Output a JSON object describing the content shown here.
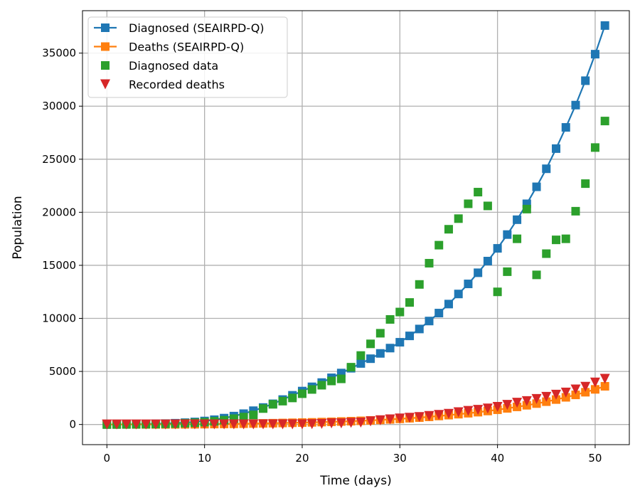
{
  "chart_data": {
    "type": "line",
    "title": "",
    "xlabel": "Time (days)",
    "ylabel": "Population",
    "xlim": [
      -2.5,
      53.5
    ],
    "ylim": [
      -1900,
      39000
    ],
    "xticks": [
      0,
      10,
      20,
      30,
      40,
      50
    ],
    "yticks": [
      0,
      5000,
      10000,
      15000,
      20000,
      25000,
      30000,
      35000
    ],
    "grid": true,
    "legend_position": "top-left",
    "x": [
      0,
      1,
      2,
      3,
      4,
      5,
      6,
      7,
      8,
      9,
      10,
      11,
      12,
      13,
      14,
      15,
      16,
      17,
      18,
      19,
      20,
      21,
      22,
      23,
      24,
      25,
      26,
      27,
      28,
      29,
      30,
      31,
      32,
      33,
      34,
      35,
      36,
      37,
      38,
      39,
      40,
      41,
      42,
      43,
      44,
      45,
      46,
      47,
      48,
      49,
      50,
      51
    ],
    "series": [
      {
        "name": "Diagnosed (SEAIRPD-Q)",
        "style": "line-square",
        "color": "#1f77b4",
        "values": [
          0,
          5,
          15,
          25,
          40,
          60,
          85,
          120,
          170,
          240,
          330,
          450,
          600,
          790,
          1020,
          1300,
          1600,
          1950,
          2350,
          2750,
          3150,
          3550,
          3950,
          4400,
          4850,
          5300,
          5750,
          6200,
          6700,
          7200,
          7750,
          8350,
          9000,
          9750,
          10500,
          11350,
          12300,
          13250,
          14300,
          15400,
          16600,
          17900,
          19300,
          20800,
          22400,
          24100,
          26000,
          28000,
          30100,
          32400,
          34900,
          37600
        ]
      },
      {
        "name": "Deaths (SEAIRPD-Q)",
        "style": "line-square",
        "color": "#ff7f0e",
        "values": [
          0,
          0,
          1,
          2,
          3,
          5,
          8,
          12,
          17,
          23,
          30,
          40,
          50,
          60,
          75,
          90,
          105,
          120,
          140,
          160,
          180,
          200,
          225,
          250,
          280,
          310,
          345,
          385,
          430,
          480,
          530,
          590,
          650,
          720,
          800,
          880,
          970,
          1060,
          1160,
          1270,
          1390,
          1520,
          1660,
          1810,
          1970,
          2150,
          2350,
          2560,
          2790,
          3040,
          3310,
          3600
        ]
      },
      {
        "name": "Diagnosed data",
        "style": "square",
        "color": "#2ca02c",
        "values": [
          0,
          5,
          10,
          20,
          30,
          40,
          60,
          80,
          120,
          160,
          220,
          300,
          400,
          550,
          700,
          900,
          1500,
          1900,
          2200,
          2500,
          2900,
          3300,
          3700,
          4100,
          4300,
          5400,
          6500,
          7600,
          8600,
          9900,
          10600,
          11500,
          13200,
          15200,
          16900,
          18400,
          19400,
          20800,
          21900,
          20600,
          12500,
          14400,
          17500,
          20300,
          14100,
          16100,
          17400,
          17500,
          20100,
          22700,
          26100,
          28600
        ]
      },
      {
        "name": "Recorded deaths",
        "style": "triangle-down",
        "color": "#d62728",
        "values": [
          0,
          0,
          0,
          0,
          0,
          0,
          0,
          10,
          10,
          10,
          10,
          10,
          10,
          10,
          10,
          10,
          10,
          10,
          10,
          10,
          10,
          30,
          50,
          100,
          100,
          150,
          180,
          300,
          400,
          480,
          560,
          630,
          700,
          800,
          900,
          1000,
          1150,
          1280,
          1380,
          1500,
          1650,
          1850,
          2050,
          2200,
          2400,
          2600,
          2800,
          3000,
          3300,
          3550,
          3950,
          4300
        ]
      }
    ]
  }
}
